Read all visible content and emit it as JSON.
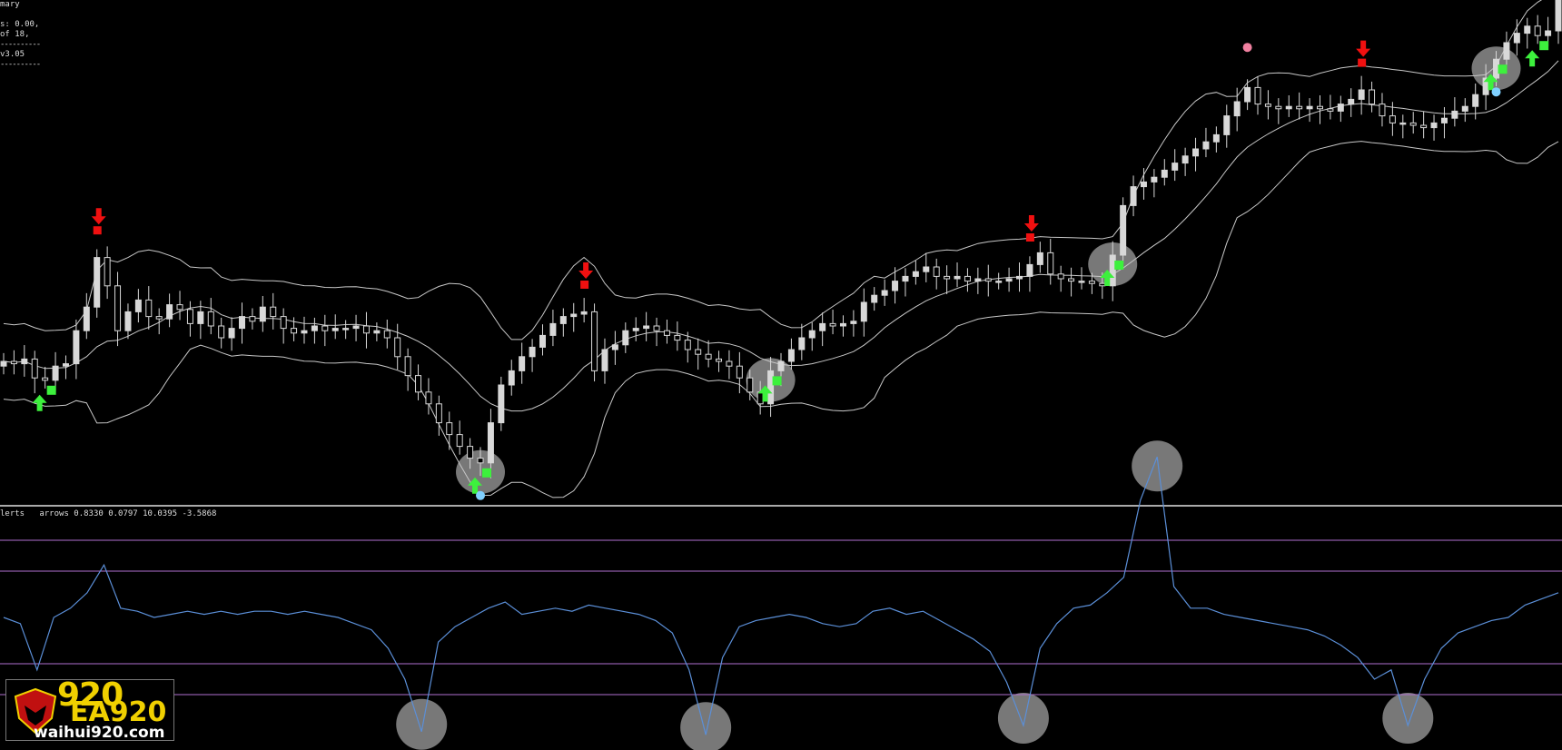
{
  "info_panel": {
    "line1": "mary",
    "line2": "s: 0.00,",
    "line3": "of 18,",
    "line4": "----------",
    "line5": "v3.05",
    "line6": "----------"
  },
  "indicator_label": "lerts   arrows 0.8330 0.0797 10.0395 -3.5868",
  "watermark": {
    "big_text": "920",
    "ea_text": "EA920",
    "url": "waihui920.com"
  },
  "colors": {
    "background": "#000000",
    "candle": "#d8d8d8",
    "band": "#c8c8c8",
    "separator": "#aaaaaa",
    "indicator_line": "#5b8fd8",
    "level_line": "#b070d0",
    "buy_arrow": "#3df03d",
    "sell_arrow": "#f01010",
    "highlight_circle": "#a0a0a0",
    "cyan_dot": "#7fd0ff",
    "pink_dot": "#f080a0"
  },
  "chart_data": [
    {
      "type": "candlestick",
      "series": [
        {
          "name": "close",
          "values": [
            1.0,
            0.9,
            1.1,
            0.3,
            0.2,
            0.8,
            0.9,
            2.3,
            3.3,
            5.4,
            4.2,
            2.3,
            3.1,
            3.6,
            2.9,
            2.8,
            3.4,
            3.2,
            2.6,
            3.1,
            2.5,
            2.0,
            2.4,
            2.9,
            2.7,
            3.3,
            2.9,
            2.4,
            2.2,
            2.3,
            2.5,
            2.3,
            2.4,
            2.4,
            2.5,
            2.2,
            2.3,
            2.0,
            1.2,
            0.4,
            -0.3,
            -0.8,
            -1.6,
            -2.1,
            -2.6,
            -3.1,
            -3.3,
            -1.6,
            0.0,
            0.6,
            1.2,
            1.6,
            2.1,
            2.6,
            2.9,
            3.0,
            3.1,
            0.6,
            1.5,
            1.7,
            2.3,
            2.4,
            2.5,
            2.3,
            2.1,
            1.9,
            1.5,
            1.3,
            1.1,
            1.0,
            0.8,
            0.3,
            -0.3,
            -0.8,
            0.6,
            1.0,
            1.5,
            2.0,
            2.3,
            2.6,
            2.5,
            2.6,
            2.7,
            3.5,
            3.8,
            4.0,
            4.4,
            4.6,
            4.8,
            5.0,
            4.6,
            4.5,
            4.6,
            4.4,
            4.5,
            4.4,
            4.4,
            4.5,
            4.6,
            5.1,
            5.6,
            4.7,
            4.5,
            4.4,
            4.4,
            4.3,
            4.2,
            5.5,
            7.6,
            8.4,
            8.6,
            8.8,
            9.1,
            9.4,
            9.7,
            10.0,
            10.3,
            10.6,
            11.4,
            12.0,
            12.6,
            11.9,
            11.8,
            11.7,
            11.8,
            11.7,
            11.8,
            11.7,
            11.6,
            11.9,
            12.1,
            12.5,
            11.9,
            11.4,
            11.1,
            11.1,
            11.0,
            10.9,
            11.1,
            11.3,
            11.6,
            11.8,
            12.3,
            13.0,
            13.8,
            14.5,
            14.9,
            15.2,
            14.8,
            15.0,
            16.6
          ]
        }
      ],
      "bands": [
        "upper",
        "middle",
        "lower"
      ],
      "buy_arrows": 6,
      "sell_arrows": 4,
      "highlighted_circles": 5
    },
    {
      "type": "line",
      "series": [
        {
          "name": "oscillator",
          "values": [
            0.5,
            0.3,
            -1.2,
            0.5,
            0.8,
            1.3,
            2.2,
            0.8,
            0.7,
            0.5,
            0.6,
            0.7,
            0.6,
            0.7,
            0.6,
            0.7,
            0.7,
            0.6,
            0.7,
            0.6,
            0.5,
            0.3,
            0.1,
            -0.5,
            -1.5,
            -3.2,
            -0.3,
            0.2,
            0.5,
            0.8,
            1.0,
            0.6,
            0.7,
            0.8,
            0.7,
            0.9,
            0.8,
            0.7,
            0.6,
            0.4,
            0.0,
            -1.2,
            -3.3,
            -0.8,
            0.2,
            0.4,
            0.5,
            0.6,
            0.5,
            0.3,
            0.2,
            0.3,
            0.7,
            0.8,
            0.6,
            0.7,
            0.4,
            0.1,
            -0.2,
            -0.6,
            -1.6,
            -3.0,
            -0.5,
            0.3,
            0.8,
            0.9,
            1.3,
            1.8,
            4.3,
            5.7,
            1.5,
            0.8,
            0.8,
            0.6,
            0.5,
            0.4,
            0.3,
            0.2,
            0.1,
            -0.1,
            -0.4,
            -0.8,
            -1.5,
            -1.2,
            -3.0,
            -1.5,
            -0.5,
            0.0,
            0.2,
            0.4,
            0.5,
            0.9,
            1.1,
            1.3
          ]
        }
      ],
      "levels": [
        3.0,
        2.0,
        -1.0,
        -2.0
      ]
    }
  ]
}
